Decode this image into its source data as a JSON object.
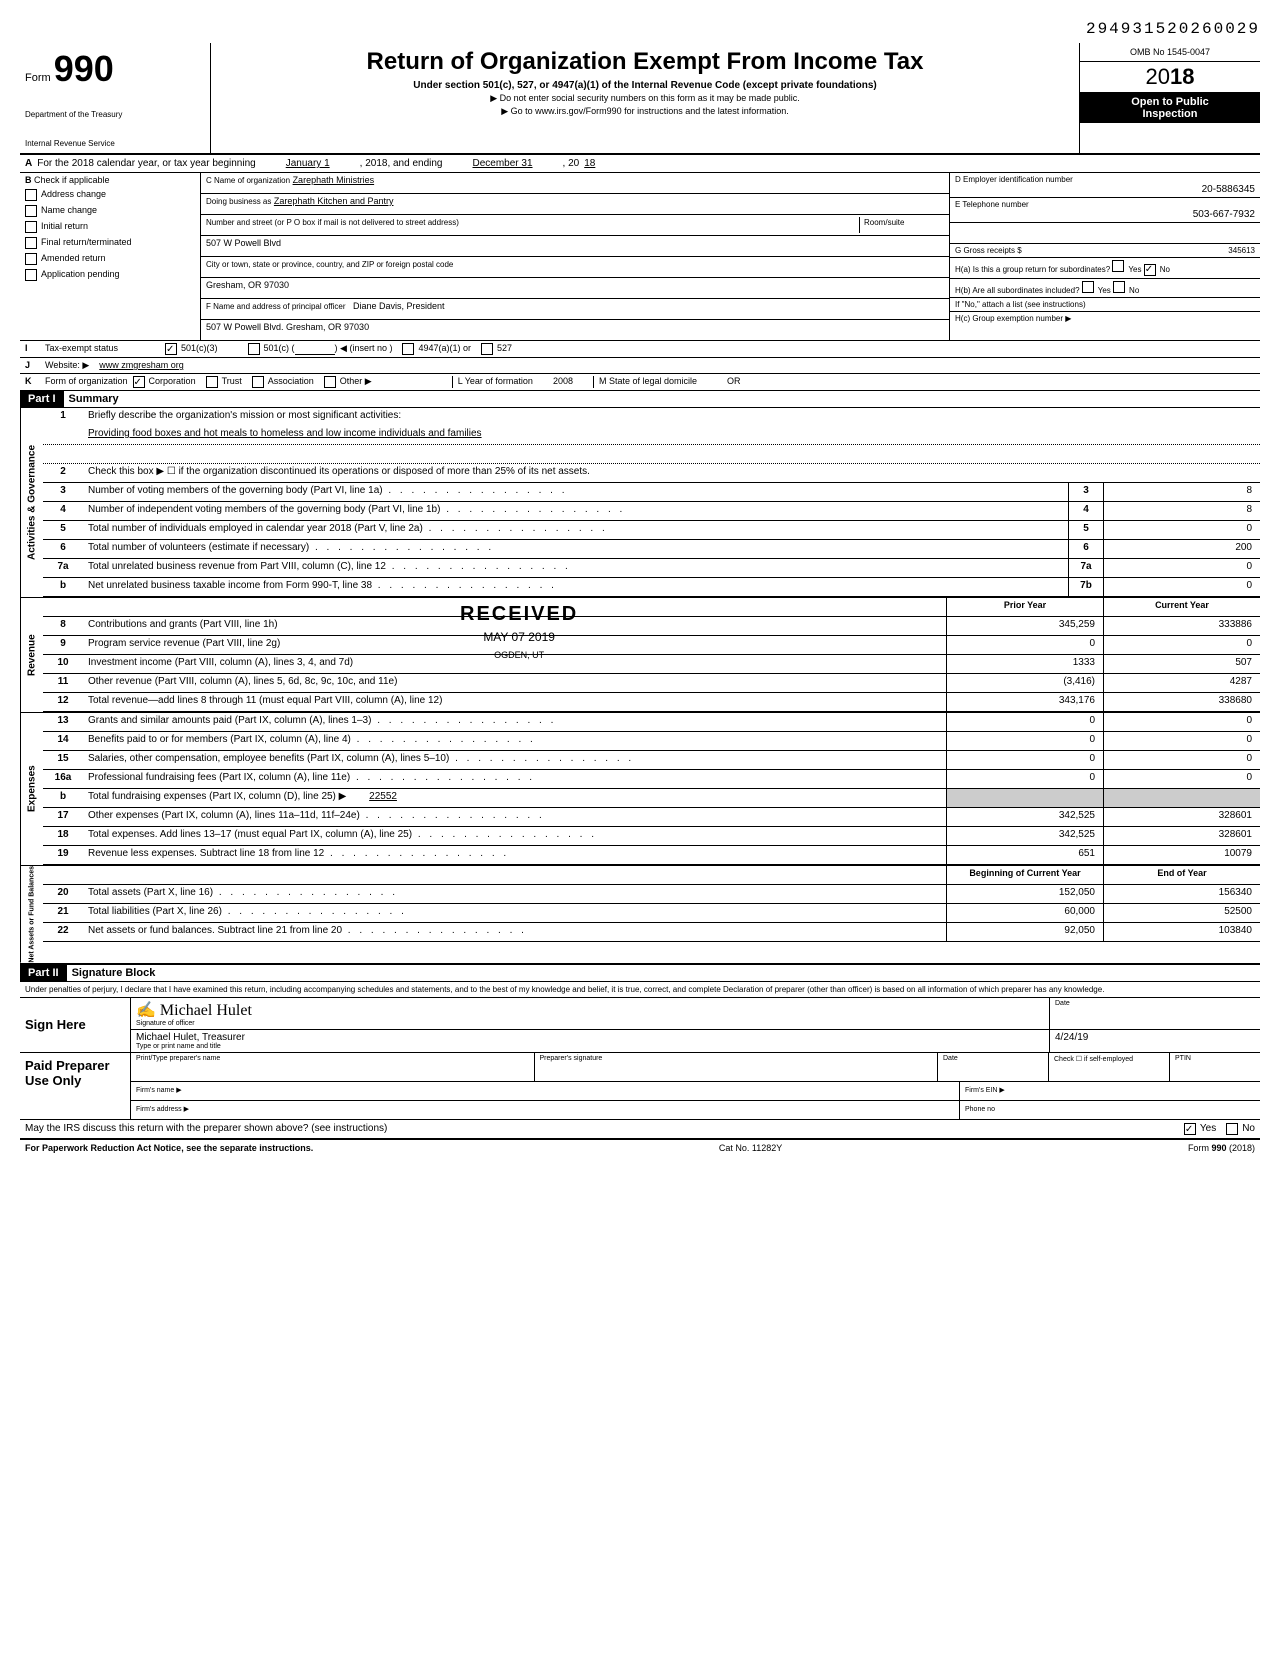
{
  "top_number": "294931520260029",
  "form": {
    "number": "990",
    "form_label": "Form",
    "dept1": "Department of the Treasury",
    "dept2": "Internal Revenue Service"
  },
  "header": {
    "title": "Return of Organization Exempt From Income Tax",
    "subtitle": "Under section 501(c), 527, or 4947(a)(1) of the Internal Revenue Code (except private foundations)",
    "sub2": "▶ Do not enter social security numbers on this form as it may be made public.",
    "sub3": "▶ Go to www.irs.gov/Form990 for instructions and the latest information.",
    "omb": "OMB No 1545-0047",
    "year": "2018",
    "open1": "Open to Public",
    "open2": "Inspection"
  },
  "row_a": {
    "label": "A",
    "text1": "For the 2018 calendar year, or tax year beginning",
    "begin": "January 1",
    "text2": ", 2018, and ending",
    "end": "December 31",
    "text3": ", 20",
    "yr": "18"
  },
  "section_b": {
    "b_label": "B",
    "check_label": "Check if applicable",
    "checks": [
      "Address change",
      "Name change",
      "Initial return",
      "Final return/terminated",
      "Amended return",
      "Application pending"
    ],
    "c_name_lbl": "C Name of organization",
    "c_name": "Zarephath Ministries",
    "dba_lbl": "Doing business as",
    "dba": "Zarephath Kitchen and Pantry",
    "addr_lbl": "Number and street (or P O box if mail is not delivered to street address)",
    "room_lbl": "Room/suite",
    "addr": "507 W Powell Blvd",
    "city_lbl": "City or town, state or province, country, and ZIP or foreign postal code",
    "city": "Gresham, OR 97030",
    "f_lbl": "F Name and address of principal officer",
    "f_name": "Diane Davis, President",
    "f_addr": "507 W Powell Blvd. Gresham, OR 97030",
    "d_lbl": "D Employer identification number",
    "d_val": "20-5886345",
    "e_lbl": "E Telephone number",
    "e_val": "503-667-7932",
    "g_lbl": "G Gross receipts $",
    "g_val": "345613",
    "ha_lbl": "H(a) Is this a group return for subordinates?",
    "hb_lbl": "H(b) Are all subordinates included?",
    "hb_note": "If \"No,\" attach a list (see instructions)",
    "hc_lbl": "H(c) Group exemption number ▶",
    "yes": "Yes",
    "no": "No"
  },
  "row_i": {
    "label": "I",
    "text": "Tax-exempt status",
    "opt1": "501(c)(3)",
    "opt2": "501(c) (",
    "opt2b": ") ◀ (insert no )",
    "opt3": "4947(a)(1) or",
    "opt4": "527"
  },
  "row_j": {
    "label": "J",
    "text": "Website: ▶",
    "val": "www zmgresham org"
  },
  "row_k": {
    "label": "K",
    "text": "Form of organization",
    "opts": [
      "Corporation",
      "Trust",
      "Association",
      "Other ▶"
    ],
    "l_text": "L Year of formation",
    "l_val": "2008",
    "m_text": "M State of legal domicile",
    "m_val": "OR"
  },
  "part1": {
    "hdr": "Part I",
    "title": "Summary",
    "side1": "Activities & Governance",
    "side2": "Revenue",
    "side3": "Expenses",
    "side4": "Net Assets or Fund Balances",
    "line1_text": "Briefly describe the organization's mission or most significant activities:",
    "line1_val": "Providing food boxes and hot meals to homeless and low income individuals and families",
    "line2_text": "Check this box ▶ ☐ if the organization discontinued its operations or disposed of more than 25% of its net assets.",
    "lines_gov": [
      {
        "n": "3",
        "t": "Number of voting members of the governing body (Part VI, line 1a)",
        "box": "3",
        "v": "8"
      },
      {
        "n": "4",
        "t": "Number of independent voting members of the governing body (Part VI, line 1b)",
        "box": "4",
        "v": "8"
      },
      {
        "n": "5",
        "t": "Total number of individuals employed in calendar year 2018 (Part V, line 2a)",
        "box": "5",
        "v": "0"
      },
      {
        "n": "6",
        "t": "Total number of volunteers (estimate if necessary)",
        "box": "6",
        "v": "200"
      },
      {
        "n": "7a",
        "t": "Total unrelated business revenue from Part VIII, column (C), line 12",
        "box": "7a",
        "v": "0"
      },
      {
        "n": "b",
        "t": "Net unrelated business taxable income from Form 990-T, line 38",
        "box": "7b",
        "v": "0"
      }
    ],
    "prior_hdr": "Prior Year",
    "current_hdr": "Current Year",
    "lines_rev": [
      {
        "n": "8",
        "t": "Contributions and grants (Part VIII, line 1h)",
        "p": "345,259",
        "c": "333886"
      },
      {
        "n": "9",
        "t": "Program service revenue (Part VIII, line 2g)",
        "p": "0",
        "c": "0"
      },
      {
        "n": "10",
        "t": "Investment income (Part VIII, column (A), lines 3, 4, and 7d)",
        "p": "1333",
        "c": "507"
      },
      {
        "n": "11",
        "t": "Other revenue (Part VIII, column (A), lines 5, 6d, 8c, 9c, 10c, and 11e)",
        "p": "(3,416)",
        "c": "4287"
      },
      {
        "n": "12",
        "t": "Total revenue—add lines 8 through 11 (must equal Part VIII, column (A), line 12)",
        "p": "343,176",
        "c": "338680"
      }
    ],
    "lines_exp": [
      {
        "n": "13",
        "t": "Grants and similar amounts paid (Part IX, column (A), lines 1–3)",
        "p": "0",
        "c": "0"
      },
      {
        "n": "14",
        "t": "Benefits paid to or for members (Part IX, column (A), line 4)",
        "p": "0",
        "c": "0"
      },
      {
        "n": "15",
        "t": "Salaries, other compensation, employee benefits (Part IX, column (A), lines 5–10)",
        "p": "0",
        "c": "0"
      },
      {
        "n": "16a",
        "t": "Professional fundraising fees (Part IX, column (A), line 11e)",
        "p": "0",
        "c": "0"
      },
      {
        "n": "b",
        "t": "Total fundraising expenses (Part IX, column (D), line 25) ▶",
        "p": "",
        "c": "",
        "inline": "22552"
      },
      {
        "n": "17",
        "t": "Other expenses (Part IX, column (A), lines 11a–11d, 11f–24e)",
        "p": "342,525",
        "c": "328601"
      },
      {
        "n": "18",
        "t": "Total expenses. Add lines 13–17 (must equal Part IX, column (A), line 25)",
        "p": "342,525",
        "c": "328601"
      },
      {
        "n": "19",
        "t": "Revenue less expenses. Subtract line 18 from line 12",
        "p": "651",
        "c": "10079"
      }
    ],
    "begin_hdr": "Beginning of Current Year",
    "end_hdr": "End of Year",
    "lines_net": [
      {
        "n": "20",
        "t": "Total assets (Part X, line 16)",
        "p": "152,050",
        "c": "156340"
      },
      {
        "n": "21",
        "t": "Total liabilities (Part X, line 26)",
        "p": "60,000",
        "c": "52500"
      },
      {
        "n": "22",
        "t": "Net assets or fund balances. Subtract line 21 from line 20",
        "p": "92,050",
        "c": "103840"
      }
    ],
    "received": "RECEIVED",
    "received_date": "MAY 07 2019",
    "received_loc": "OGDEN, UT"
  },
  "part2": {
    "hdr": "Part II",
    "title": "Signature Block",
    "decl": "Under penalties of perjury, I declare that I have examined this return, including accompanying schedules and statements, and to the best of my knowledge and belief, it is true, correct, and complete Declaration of preparer (other than officer) is based on all information of which preparer has any knowledge.",
    "sign_here": "Sign Here",
    "sig_lbl": "Signature of officer",
    "date_lbl": "Date",
    "name": "Michael Hulet, Treasurer",
    "name_lbl": "Type or print name and title",
    "date": "4/24/19",
    "paid": "Paid Preparer Use Only",
    "prep_name_lbl": "Print/Type preparer's name",
    "prep_sig_lbl": "Preparer's signature",
    "check_lbl": "Check ☐ if self-employed",
    "ptin_lbl": "PTIN",
    "firm_name_lbl": "Firm's name ▶",
    "firm_ein_lbl": "Firm's EIN ▶",
    "firm_addr_lbl": "Firm's address ▶",
    "phone_lbl": "Phone no",
    "irs_q": "May the IRS discuss this return with the preparer shown above? (see instructions)",
    "yes": "Yes",
    "no": "No"
  },
  "footer": {
    "left": "For Paperwork Reduction Act Notice, see the separate instructions.",
    "mid": "Cat No. 11282Y",
    "right": "Form 990 (2018)"
  }
}
